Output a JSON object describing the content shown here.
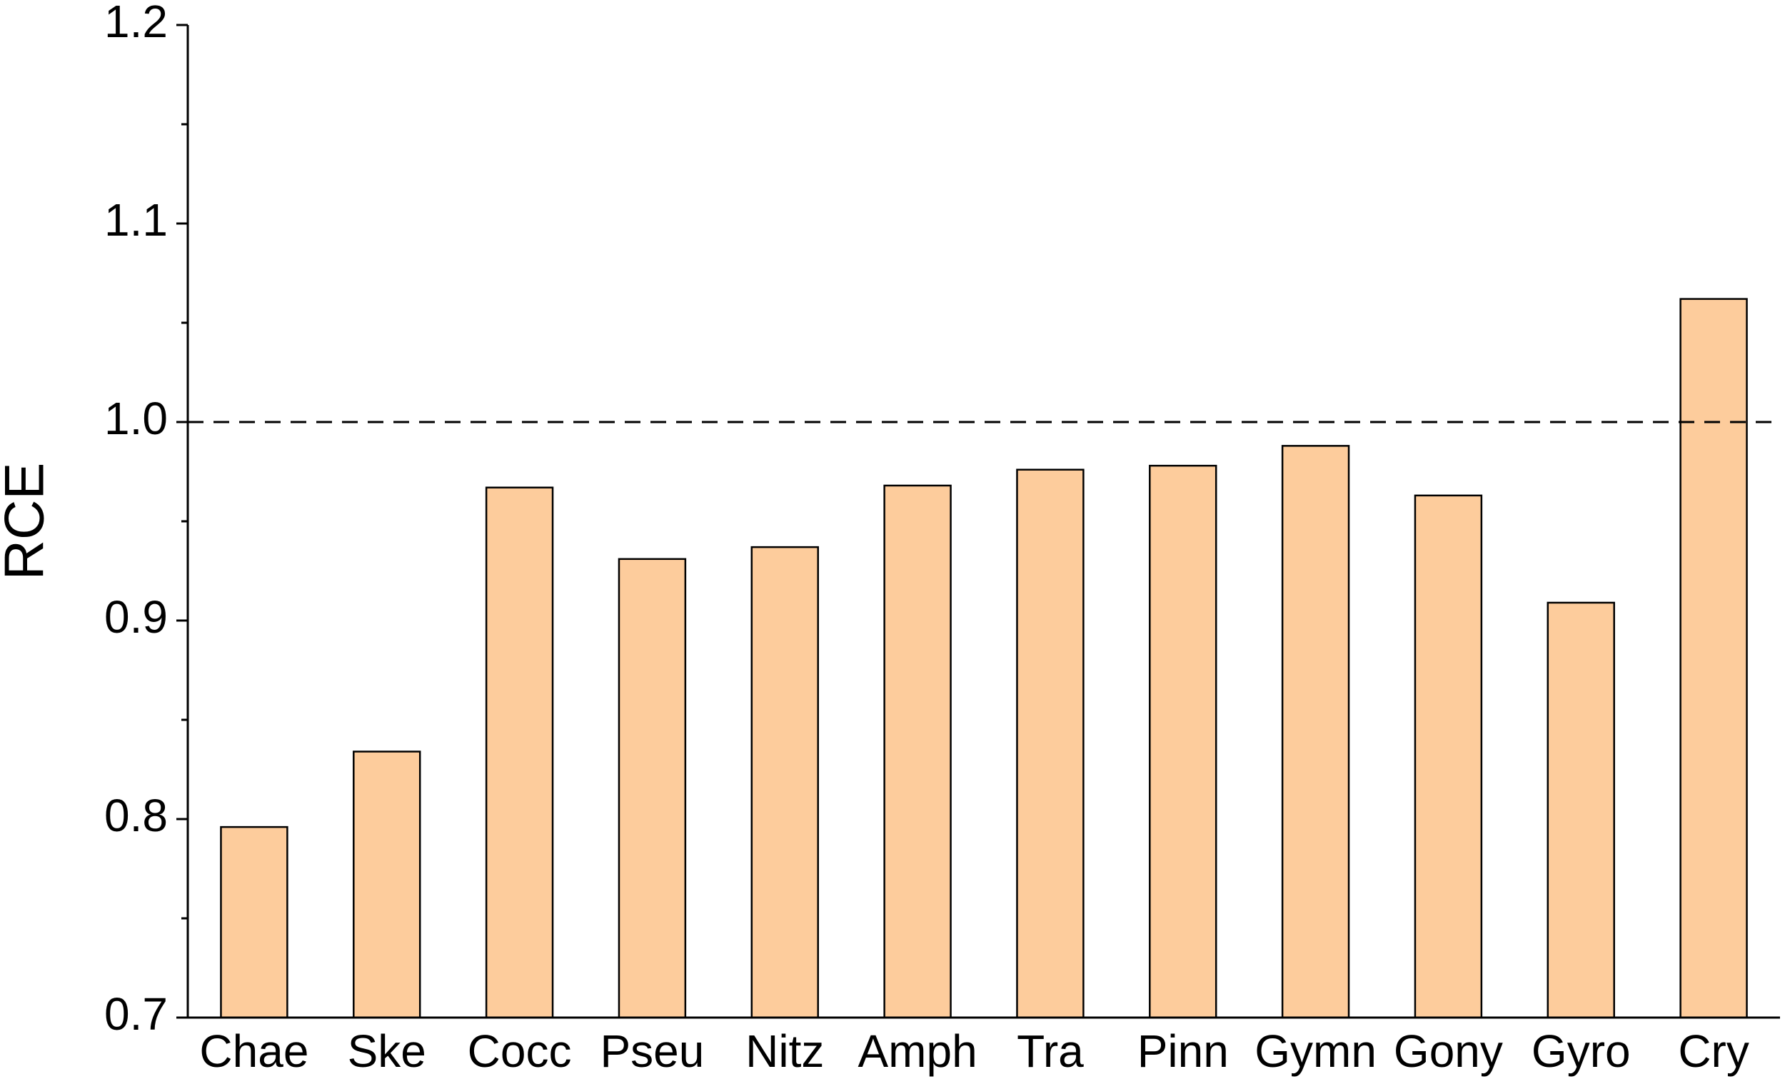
{
  "chart_data": {
    "type": "bar",
    "y_label": "RCE",
    "categories": [
      "Chae",
      "Ske",
      "Cocc",
      "Pseu",
      "Nitz",
      "Amph",
      "Tra",
      "Pinn",
      "Gymn",
      "Gony",
      "Gyro",
      "Cry"
    ],
    "values": [
      0.796,
      0.834,
      0.967,
      0.931,
      0.937,
      0.968,
      0.976,
      0.978,
      0.988,
      0.963,
      0.909,
      1.062
    ],
    "color": "#fdcc9c",
    "ylim": [
      0.7,
      1.2
    ],
    "yticks": [
      0.7,
      0.8,
      0.9,
      {
        "value": 1,
        "label": "1.0"
      },
      1.1,
      1.2
    ],
    "minor_yticks": [
      0.75,
      0.85,
      0.95,
      1.05,
      1.15
    ],
    "reference_line": 1,
    "grid": false
  }
}
